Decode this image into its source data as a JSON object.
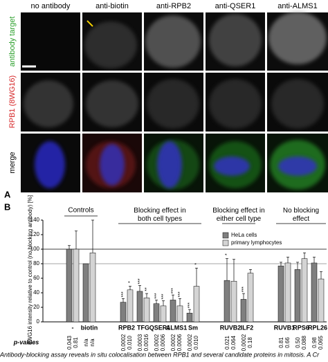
{
  "panel_a": {
    "label": "A",
    "columns": [
      "no antibody",
      "anti-biotin",
      "anti-RPB2",
      "anti-QSER1",
      "anti-ALMS1"
    ],
    "rows": [
      "antibody target",
      "RPB1 (8WG16)",
      "merge"
    ]
  },
  "chart_data": {
    "type": "bar",
    "label": "B",
    "ylabel": "8WG16 intensity relative to control (no blocking antibody) [%]",
    "ylim": [
      0,
      140
    ],
    "yticks": [
      0,
      20,
      40,
      60,
      80,
      100,
      120,
      140
    ],
    "reference_lines": [
      100,
      80
    ],
    "categories": [
      "-",
      "biotin",
      "RPB2",
      "TFG",
      "QSER1",
      "ALMS1",
      "Sm",
      "RUVB2",
      "ILF2",
      "RUVB1",
      "RPS6",
      "RPL26"
    ],
    "groups": [
      {
        "label": "Controls",
        "count": 2
      },
      {
        "label": "Blocking effect in both cell types",
        "count": 5
      },
      {
        "label": "Blocking effect in either cell type",
        "count": 2
      },
      {
        "label": "No blocking effect",
        "count": 3
      }
    ],
    "series": [
      {
        "name": "HeLa cells",
        "color": "#7f7f7f",
        "values": [
          100,
          80,
          27,
          42,
          25,
          30,
          12,
          57,
          31,
          77,
          72,
          81
        ],
        "errors": [
          5,
          null,
          5,
          8,
          5,
          7,
          5,
          30,
          8,
          5,
          10,
          8
        ],
        "stars": [
          null,
          null,
          "***",
          "***",
          "***",
          "***",
          "***",
          "*",
          "***",
          null,
          null,
          null
        ],
        "p_values": [
          "0.043",
          "n/a",
          "0.0002",
          "0.0003",
          "0.0002",
          "0.0002",
          "0.0002",
          "0.021",
          "0.0002",
          "0.81",
          "0.50",
          "0.98"
        ]
      },
      {
        "name": "primary lymphocytes",
        "color": "#d4d4d4",
        "values": [
          100,
          95,
          44,
          33,
          22,
          22,
          49,
          56,
          67,
          81,
          87,
          59
        ],
        "errors": [
          25,
          45,
          5,
          6,
          7,
          10,
          25,
          30,
          5,
          8,
          8,
          10
        ],
        "stars": [
          null,
          null,
          "*",
          "**",
          "***",
          "***",
          "*",
          null,
          null,
          null,
          null,
          null
        ],
        "p_values": [
          "0.81",
          "n/a",
          "0.010",
          "0.0016",
          "0.0006",
          "0.0006",
          "0.010",
          "0.064",
          "0.18",
          "0.66",
          "0.088",
          "0.065"
        ]
      }
    ],
    "p_label": "p-values",
    "legend": "top-right"
  },
  "caption": "Antibody-blocking assay reveals in situ colocalisation between RPB1 and several candidate proteins in mitosis. A Cr"
}
